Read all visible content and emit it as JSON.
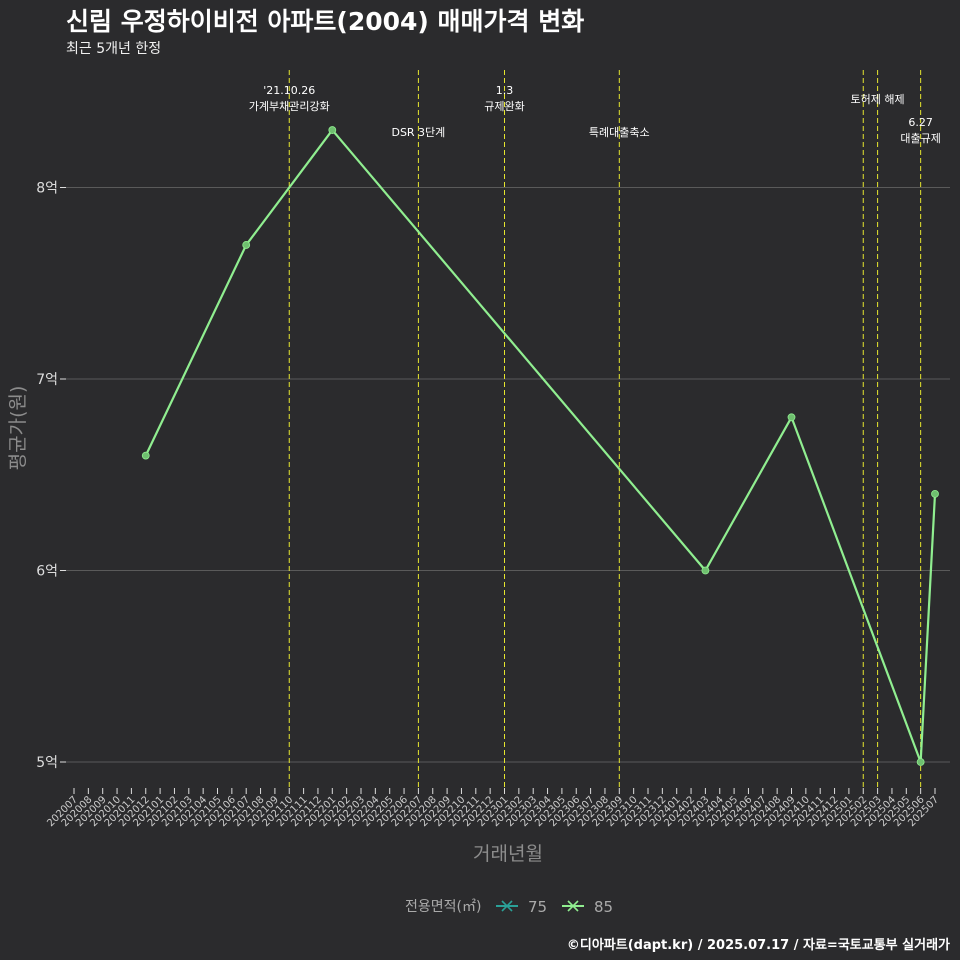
{
  "title": "신림 우정하이비전 아파트(2004) 매매가격 변화",
  "subtitle": "최근 5개년 한정",
  "caption": "©디아파트(dapt.kr) / 2025.07.17 / 자료=국토교통부 실거래가",
  "colors": {
    "background": "#2b2b2d",
    "grid": "#5a5a5a",
    "line85": "#90ee90",
    "line75": "#2aa198",
    "event": "#e6e62e",
    "axis_text": "#bbbbbb",
    "axis_title": "#8c8c8c"
  },
  "chart_data": {
    "type": "line",
    "xlabel": "거래년월",
    "ylabel": "평균가(원)",
    "ylim": [
      4.9,
      8.6
    ],
    "yticks": [
      {
        "value": 5,
        "label": "5억"
      },
      {
        "value": 6,
        "label": "6억"
      },
      {
        "value": 7,
        "label": "7억"
      },
      {
        "value": 8,
        "label": "8억"
      }
    ],
    "categories": [
      "202007",
      "202008",
      "202009",
      "202010",
      "202011",
      "202012",
      "202101",
      "202102",
      "202103",
      "202104",
      "202105",
      "202106",
      "202107",
      "202108",
      "202109",
      "202110",
      "202111",
      "202112",
      "202201",
      "202202",
      "202203",
      "202204",
      "202205",
      "202206",
      "202207",
      "202208",
      "202209",
      "202210",
      "202211",
      "202212",
      "202301",
      "202302",
      "202303",
      "202304",
      "202305",
      "202306",
      "202307",
      "202308",
      "202309",
      "202310",
      "202311",
      "202312",
      "202401",
      "202402",
      "202403",
      "202404",
      "202405",
      "202406",
      "202407",
      "202408",
      "202409",
      "202410",
      "202411",
      "202412",
      "202501",
      "202502",
      "202503",
      "202504",
      "202505",
      "202506",
      "202507"
    ],
    "series": [
      {
        "name": "85",
        "points": [
          {
            "x": "202012",
            "y": 6.6
          },
          {
            "x": "202107",
            "y": 7.7
          },
          {
            "x": "202201",
            "y": 8.3
          },
          {
            "x": "202403",
            "y": 6.0
          },
          {
            "x": "202409",
            "y": 6.8
          },
          {
            "x": "202506",
            "y": 5.0
          },
          {
            "x": "202507",
            "y": 6.4
          }
        ]
      }
    ],
    "events": [
      {
        "x": "202110",
        "lines": [
          "'21.10.26",
          "가계부채관리강화"
        ],
        "level": 0
      },
      {
        "x": "202207",
        "lines": [
          "DSR 3단계"
        ],
        "level": 2
      },
      {
        "x": "202301",
        "lines": [
          "1.3",
          "규제완화"
        ],
        "level": 0
      },
      {
        "x": "202309",
        "lines": [
          "특례대출축소"
        ],
        "level": 2
      },
      {
        "x": "202502",
        "lines": [],
        "level": 0
      },
      {
        "x": "202503",
        "lines": [
          "토허제 해제"
        ],
        "level": 1
      },
      {
        "x": "202506",
        "lines": [
          "6.27",
          "대출규제"
        ],
        "level": 3
      }
    ],
    "legend": {
      "title": "전용면적(㎡)",
      "items": [
        {
          "label": "75",
          "color_key": "line75"
        },
        {
          "label": "85",
          "color_key": "line85"
        }
      ],
      "position": "bottom"
    }
  }
}
